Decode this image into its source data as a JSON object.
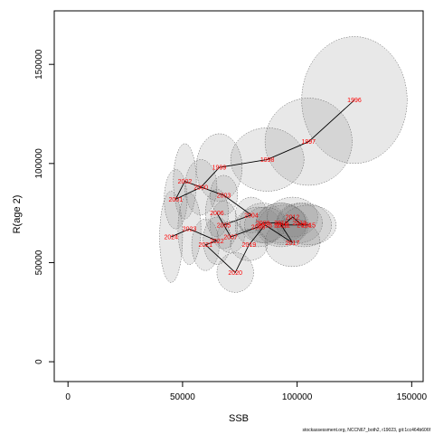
{
  "chart_data": {
    "type": "scatter",
    "title": "",
    "xlabel": "SSB",
    "ylabel": "R(age 2)",
    "xlim": [
      -6000,
      155000
    ],
    "ylim": [
      -10000,
      177000
    ],
    "xticks": [
      0,
      50000,
      100000,
      150000
    ],
    "yticks": [
      0,
      50000,
      100000,
      150000
    ],
    "grid": false,
    "legend": "none",
    "colors": {
      "label": "#ff0000",
      "line": "#000000",
      "ellipse_fill": "#808080",
      "ellipse_stroke": "#555555"
    },
    "points": [
      {
        "year": "1996",
        "ssb": 125000,
        "rec": 132000,
        "rx": 23000,
        "ry": 32000
      },
      {
        "year": "1997",
        "ssb": 105000,
        "rec": 111000,
        "rx": 19000,
        "ry": 22000
      },
      {
        "year": "1998",
        "ssb": 87000,
        "rec": 102000,
        "rx": 16000,
        "ry": 16000
      },
      {
        "year": "1999",
        "ssb": 66000,
        "rec": 98000,
        "rx": 10000,
        "ry": 17000
      },
      {
        "year": "2000",
        "ssb": 58000,
        "rec": 88000,
        "rx": 7000,
        "ry": 14000
      },
      {
        "year": "2001",
        "ssb": 47000,
        "rec": 82000,
        "rx": 5000,
        "ry": 15000
      },
      {
        "year": "2002",
        "ssb": 51000,
        "rec": 91000,
        "rx": 5000,
        "ry": 19000
      },
      {
        "year": "2003",
        "ssb": 68000,
        "rec": 84000,
        "rx": 6000,
        "ry": 10000
      },
      {
        "year": "2004",
        "ssb": 80000,
        "rec": 74000,
        "rx": 7000,
        "ry": 9000
      },
      {
        "year": "2005",
        "ssb": 68000,
        "rec": 69000,
        "rx": 6000,
        "ry": 12000
      },
      {
        "year": "2006",
        "ssb": 65000,
        "rec": 75000,
        "rx": 5000,
        "ry": 12000
      },
      {
        "year": "2007",
        "ssb": 71000,
        "rec": 63000,
        "rx": 6000,
        "ry": 8000
      },
      {
        "year": "2008",
        "ssb": 83000,
        "rec": 68000,
        "rx": 10000,
        "ry": 10000
      },
      {
        "year": "2009",
        "ssb": 85000,
        "rec": 70000,
        "rx": 10000,
        "ry": 10000
      },
      {
        "year": "2010",
        "ssb": 93000,
        "rec": 70000,
        "rx": 11000,
        "ry": 10000
      },
      {
        "year": "2011",
        "ssb": 94000,
        "rec": 69000,
        "rx": 11000,
        "ry": 10000
      },
      {
        "year": "2012",
        "ssb": 98000,
        "rec": 73000,
        "rx": 11000,
        "ry": 10000
      },
      {
        "year": "2013",
        "ssb": 101000,
        "rec": 70000,
        "rx": 10000,
        "ry": 10000
      },
      {
        "year": "2014",
        "ssb": 103000,
        "rec": 69000,
        "rx": 12000,
        "ry": 11000
      },
      {
        "year": "2015",
        "ssb": 105000,
        "rec": 69000,
        "rx": 12000,
        "ry": 10000
      },
      {
        "year": "2016",
        "ssb": 93000,
        "rec": 69000,
        "rx": 11000,
        "ry": 11000
      },
      {
        "year": "2017",
        "ssb": 98000,
        "rec": 60000,
        "rx": 12000,
        "ry": 12000
      },
      {
        "year": "2018",
        "ssb": 86000,
        "rec": 69000,
        "rx": 9000,
        "ry": 9000
      },
      {
        "year": "2019",
        "ssb": 79000,
        "rec": 59000,
        "rx": 8000,
        "ry": 8000
      },
      {
        "year": "2020",
        "ssb": 73000,
        "rec": 45000,
        "rx": 8000,
        "ry": 10000
      },
      {
        "year": "2021",
        "ssb": 60000,
        "rec": 59000,
        "rx": 6000,
        "ry": 13000
      },
      {
        "year": "2022",
        "ssb": 65000,
        "rec": 61000,
        "rx": 6000,
        "ry": 12000
      },
      {
        "year": "2023",
        "ssb": 53000,
        "rec": 67000,
        "rx": 5000,
        "ry": 18000
      },
      {
        "year": "2024",
        "ssb": 45000,
        "rec": 63000,
        "rx": 5000,
        "ry": 23000
      }
    ]
  },
  "caption": "stockassessment.org, NCCN67_both2, r19023, git:1cc464b606f"
}
